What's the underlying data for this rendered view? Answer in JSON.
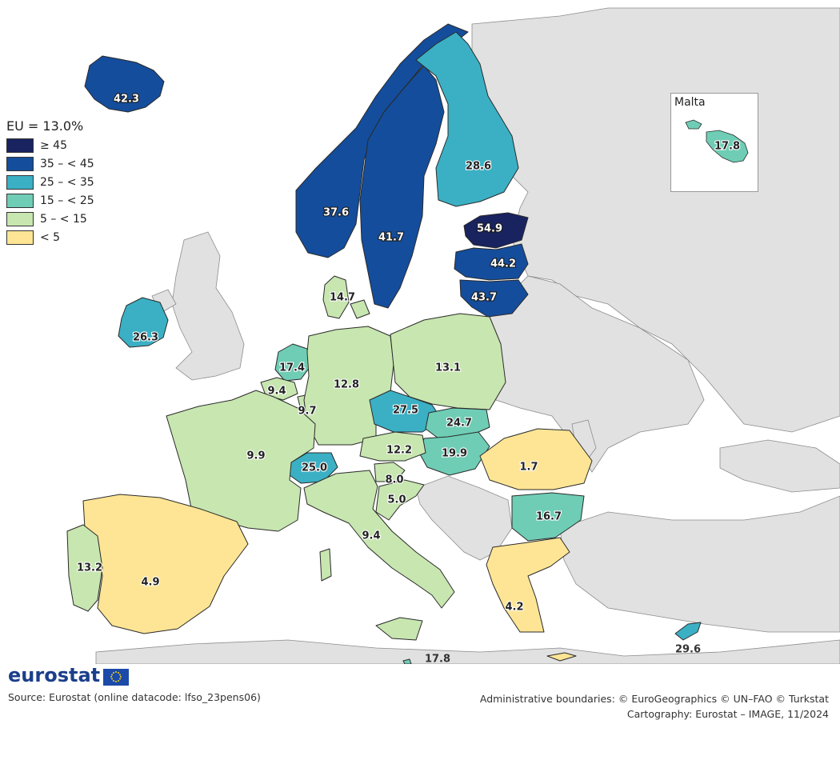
{
  "legend": {
    "title": "EU = 13.0%",
    "classes": [
      {
        "label": "≥ 45",
        "color": "#18235f"
      },
      {
        "label": "35 – < 45",
        "color": "#144d9c"
      },
      {
        "label": "25 – < 35",
        "color": "#3bb0c4"
      },
      {
        "label": "15 – < 25",
        "color": "#6fcdb5"
      },
      {
        "label": "5 – < 15",
        "color": "#c8e6b0"
      },
      {
        "label": "< 5",
        "color": "#fde595"
      }
    ]
  },
  "regions": [
    {
      "name": "Iceland",
      "value": "42.3",
      "class": 1
    },
    {
      "name": "Norway",
      "value": "37.6",
      "class": 1
    },
    {
      "name": "Sweden",
      "value": "41.7",
      "class": 1
    },
    {
      "name": "Finland",
      "value": "28.6",
      "class": 2
    },
    {
      "name": "Estonia",
      "value": "54.9",
      "class": 0
    },
    {
      "name": "Latvia",
      "value": "44.2",
      "class": 1
    },
    {
      "name": "Lithuania",
      "value": "43.7",
      "class": 1
    },
    {
      "name": "Denmark",
      "value": "14.7",
      "class": 4
    },
    {
      "name": "Ireland",
      "value": "26.3",
      "class": 2
    },
    {
      "name": "Netherlands",
      "value": "17.4",
      "class": 3
    },
    {
      "name": "Belgium",
      "value": "9.4",
      "class": 4
    },
    {
      "name": "Luxembourg",
      "value": "9.7",
      "class": 4
    },
    {
      "name": "Germany",
      "value": "12.8",
      "class": 4
    },
    {
      "name": "Poland",
      "value": "13.1",
      "class": 4
    },
    {
      "name": "Czechia",
      "value": "27.5",
      "class": 2
    },
    {
      "name": "Slovakia",
      "value": "24.7",
      "class": 3
    },
    {
      "name": "Hungary",
      "value": "19.9",
      "class": 3
    },
    {
      "name": "Austria",
      "value": "12.2",
      "class": 4
    },
    {
      "name": "Switzerland",
      "value": "25.0",
      "class": 2
    },
    {
      "name": "France",
      "value": "9.9",
      "class": 4
    },
    {
      "name": "Slovenia",
      "value": "8.0",
      "class": 4
    },
    {
      "name": "Croatia",
      "value": "5.0",
      "class": 4
    },
    {
      "name": "Italy",
      "value": "9.4",
      "class": 4
    },
    {
      "name": "Romania",
      "value": "1.7",
      "class": 5
    },
    {
      "name": "Bulgaria",
      "value": "16.7",
      "class": 3
    },
    {
      "name": "Greece",
      "value": "4.2",
      "class": 5
    },
    {
      "name": "Spain",
      "value": "4.9",
      "class": 5
    },
    {
      "name": "Portugal",
      "value": "13.2",
      "class": 4
    },
    {
      "name": "Cyprus",
      "value": "29.6",
      "class": 2
    },
    {
      "name": "Malta",
      "value": "17.8",
      "class": 3
    }
  ],
  "malta_inset": {
    "title": "Malta",
    "value": "17.8"
  },
  "extra_labels": {
    "malta_main": "17.8"
  },
  "footer": {
    "logo": "eurostat",
    "source": "Source: Eurostat (online datacode: lfso_23pens06)",
    "credit_line1": "Administrative boundaries: © EuroGeographics © UN–FAO © Turkstat",
    "credit_line2": "Cartography: Eurostat – IMAGE, 11/2024"
  }
}
